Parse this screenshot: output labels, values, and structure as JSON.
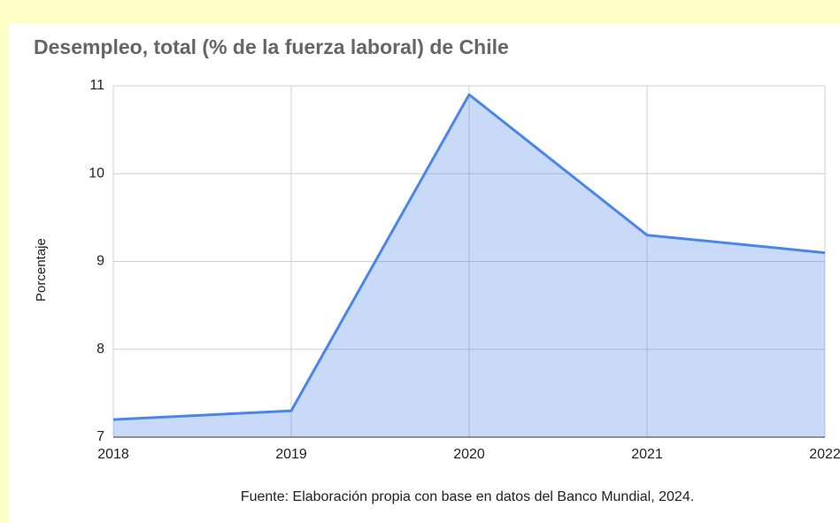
{
  "chart_data": {
    "type": "area",
    "title": "Desempleo, total (% de la fuerza laboral) de Chile",
    "y_label": "Porcentaje",
    "source": "Fuente: Elaboración propia con base en datos del Banco Mundial, 2024.",
    "x": [
      2018,
      2019,
      2020,
      2021,
      2022
    ],
    "series": [
      {
        "name": "Desempleo",
        "color": "#4a86e8",
        "values": [
          7.2,
          7.3,
          10.9,
          9.3,
          9.1
        ]
      }
    ],
    "xlim": [
      2018,
      2022
    ],
    "xticks": [
      2018,
      2019,
      2020,
      2021,
      2022
    ],
    "ylim": [
      7,
      11
    ],
    "yticks": [
      7,
      8,
      9,
      10,
      11
    ],
    "grid": true
  }
}
